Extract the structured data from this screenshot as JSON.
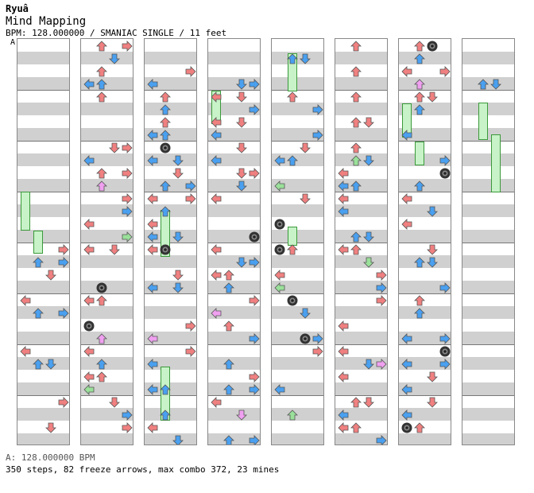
{
  "header": {
    "artist": "Ryuâ",
    "title": "Mind Mapping",
    "bpm_info": "BPM: 128.000000 / SMANIAC SINGLE / 11 feet",
    "marker": "A"
  },
  "footer": {
    "bpm_legend": "A: 128.000000 BPM",
    "stats": "350 steps, 82 freeze arrows, max combo 372, 23 mines"
  },
  "colors": {
    "red": "#f08080",
    "blue": "#4aa0f0",
    "pink": "#f0a0f0",
    "green": "#9ae09a",
    "mine": "#333333"
  },
  "lanes": [
    "left",
    "down",
    "up",
    "right"
  ]
}
